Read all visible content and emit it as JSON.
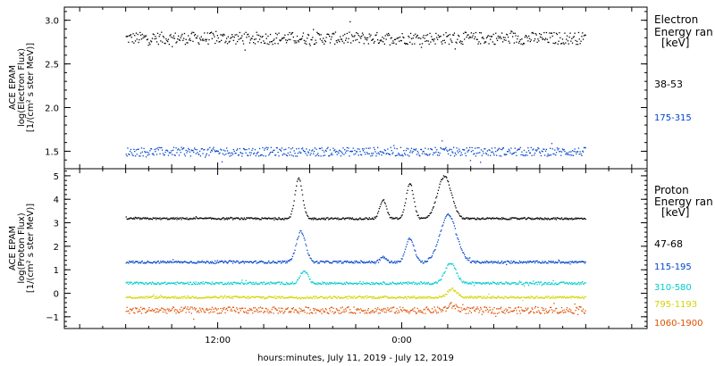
{
  "chart_data": [
    {
      "type": "scatter",
      "panel": "electron",
      "ylabel_lines": [
        "ACE EPAM",
        "log(Electron Flux)",
        "[1/(cm² s ster MeV)]"
      ],
      "ylim": [
        1.3,
        3.15
      ],
      "yticks": [
        1.5,
        2.0,
        2.5,
        3.0
      ],
      "ytick_labels": [
        "1.5",
        "2.0",
        "2.5",
        "3.0"
      ],
      "legend": {
        "title_lines": [
          "Electron",
          "Energy ran",
          "[keV]"
        ],
        "placement": "right"
      },
      "series": [
        {
          "name": "38-53",
          "color": "#000000",
          "base": 2.8,
          "spread": 0.07,
          "x": [
            0,
            4,
            8,
            12,
            16,
            20,
            24,
            28,
            32,
            36,
            40,
            44,
            48,
            52,
            56,
            60
          ],
          "y": [
            2.8,
            2.85,
            2.78,
            2.82,
            2.79,
            2.81,
            2.77,
            2.8,
            2.76,
            2.83,
            2.78,
            2.8,
            2.8,
            2.82,
            2.79,
            2.78
          ]
        },
        {
          "name": "175-315",
          "color": "#0044cc",
          "base": 1.5,
          "spread": 0.05,
          "x": [
            0,
            4,
            8,
            12,
            16,
            20,
            24,
            28,
            32,
            36,
            40,
            44,
            48,
            52,
            56,
            60
          ],
          "y": [
            1.5,
            1.52,
            1.49,
            1.5,
            1.48,
            1.51,
            1.5,
            1.49,
            1.5,
            1.52,
            1.49,
            1.5,
            1.5,
            1.51,
            1.49,
            1.5
          ]
        }
      ]
    },
    {
      "type": "scatter",
      "panel": "proton",
      "ylabel_lines": [
        "ACE EPAM",
        "log(Proton Flux)",
        "[1/(cm² s ster MeV)]"
      ],
      "ylim": [
        -1.5,
        5.3
      ],
      "yticks": [
        -1,
        0,
        1,
        2,
        3,
        4,
        5
      ],
      "ytick_labels": [
        "−1",
        "0",
        "1",
        "2",
        "3",
        "4",
        "5"
      ],
      "legend": {
        "title_lines": [
          "Proton",
          "Energy ran",
          "[keV]"
        ],
        "placement": "right"
      },
      "series": [
        {
          "name": "47-68",
          "color": "#000000",
          "base": 3.2,
          "spread": 0.04,
          "events": [
            {
              "x": 22.5,
              "height": 1.7,
              "width": 0.8
            },
            {
              "x": 33.5,
              "height": 0.8,
              "width": 0.7
            },
            {
              "x": 37,
              "height": 1.5,
              "width": 0.8
            },
            {
              "x": 41.5,
              "height": 1.8,
              "width": 1.5
            }
          ],
          "x": [
            0,
            10,
            20,
            22.5,
            25,
            33.5,
            37,
            41.5,
            45,
            50,
            60
          ],
          "y": [
            3.2,
            3.2,
            3.2,
            4.9,
            3.2,
            4.0,
            4.7,
            5.0,
            3.2,
            3.2,
            3.2
          ]
        },
        {
          "name": "115-195",
          "color": "#0044cc",
          "base": 1.35,
          "spread": 0.05,
          "events": [
            {
              "x": 22.8,
              "height": 1.3,
              "width": 1.0
            },
            {
              "x": 33.5,
              "height": 0.2,
              "width": 0.7
            },
            {
              "x": 37,
              "height": 1.0,
              "width": 0.9
            },
            {
              "x": 42,
              "height": 2.0,
              "width": 1.8
            }
          ],
          "x": [
            0,
            10,
            20,
            22.8,
            25,
            33.5,
            37,
            42,
            45,
            50,
            60
          ],
          "y": [
            1.35,
            1.35,
            1.35,
            2.65,
            1.35,
            1.55,
            2.35,
            3.35,
            1.35,
            1.35,
            1.3
          ]
        },
        {
          "name": "310-580",
          "color": "#00cccc",
          "base": 0.45,
          "spread": 0.05,
          "events": [
            {
              "x": 23.2,
              "height": 0.55,
              "width": 0.8
            },
            {
              "x": 42.3,
              "height": 0.85,
              "width": 1.2
            }
          ],
          "x": [
            0,
            10,
            20,
            23.2,
            30,
            42.3,
            50,
            60
          ],
          "y": [
            0.45,
            0.45,
            0.45,
            1.0,
            0.45,
            1.3,
            0.45,
            0.4
          ]
        },
        {
          "name": "795-1193",
          "color": "#d4d400",
          "base": -0.15,
          "spread": 0.05,
          "events": [
            {
              "x": 42.5,
              "height": 0.35,
              "width": 1.0
            }
          ],
          "x": [
            0,
            10,
            20,
            30,
            42.5,
            50,
            60
          ],
          "y": [
            -0.15,
            -0.15,
            -0.15,
            -0.15,
            0.2,
            -0.15,
            -0.15
          ]
        },
        {
          "name": "1060-1900",
          "color": "#e05000",
          "base": -0.7,
          "spread": 0.14,
          "events": [
            {
              "x": 42.5,
              "height": 0.2,
              "width": 1.0
            }
          ],
          "x": [
            0,
            10,
            20,
            30,
            42.5,
            50,
            60
          ],
          "y": [
            -0.7,
            -0.7,
            -0.75,
            -0.7,
            -0.5,
            -0.7,
            -0.7
          ]
        }
      ]
    }
  ],
  "xaxis": {
    "xlim": [
      -8,
      68
    ],
    "data_end": 60,
    "ticks_major": [
      12,
      36
    ],
    "tick_labels": [
      "12:00",
      "0:00"
    ],
    "xlabel": "hours:minutes, July 11, 2019 - July 12, 2019"
  }
}
